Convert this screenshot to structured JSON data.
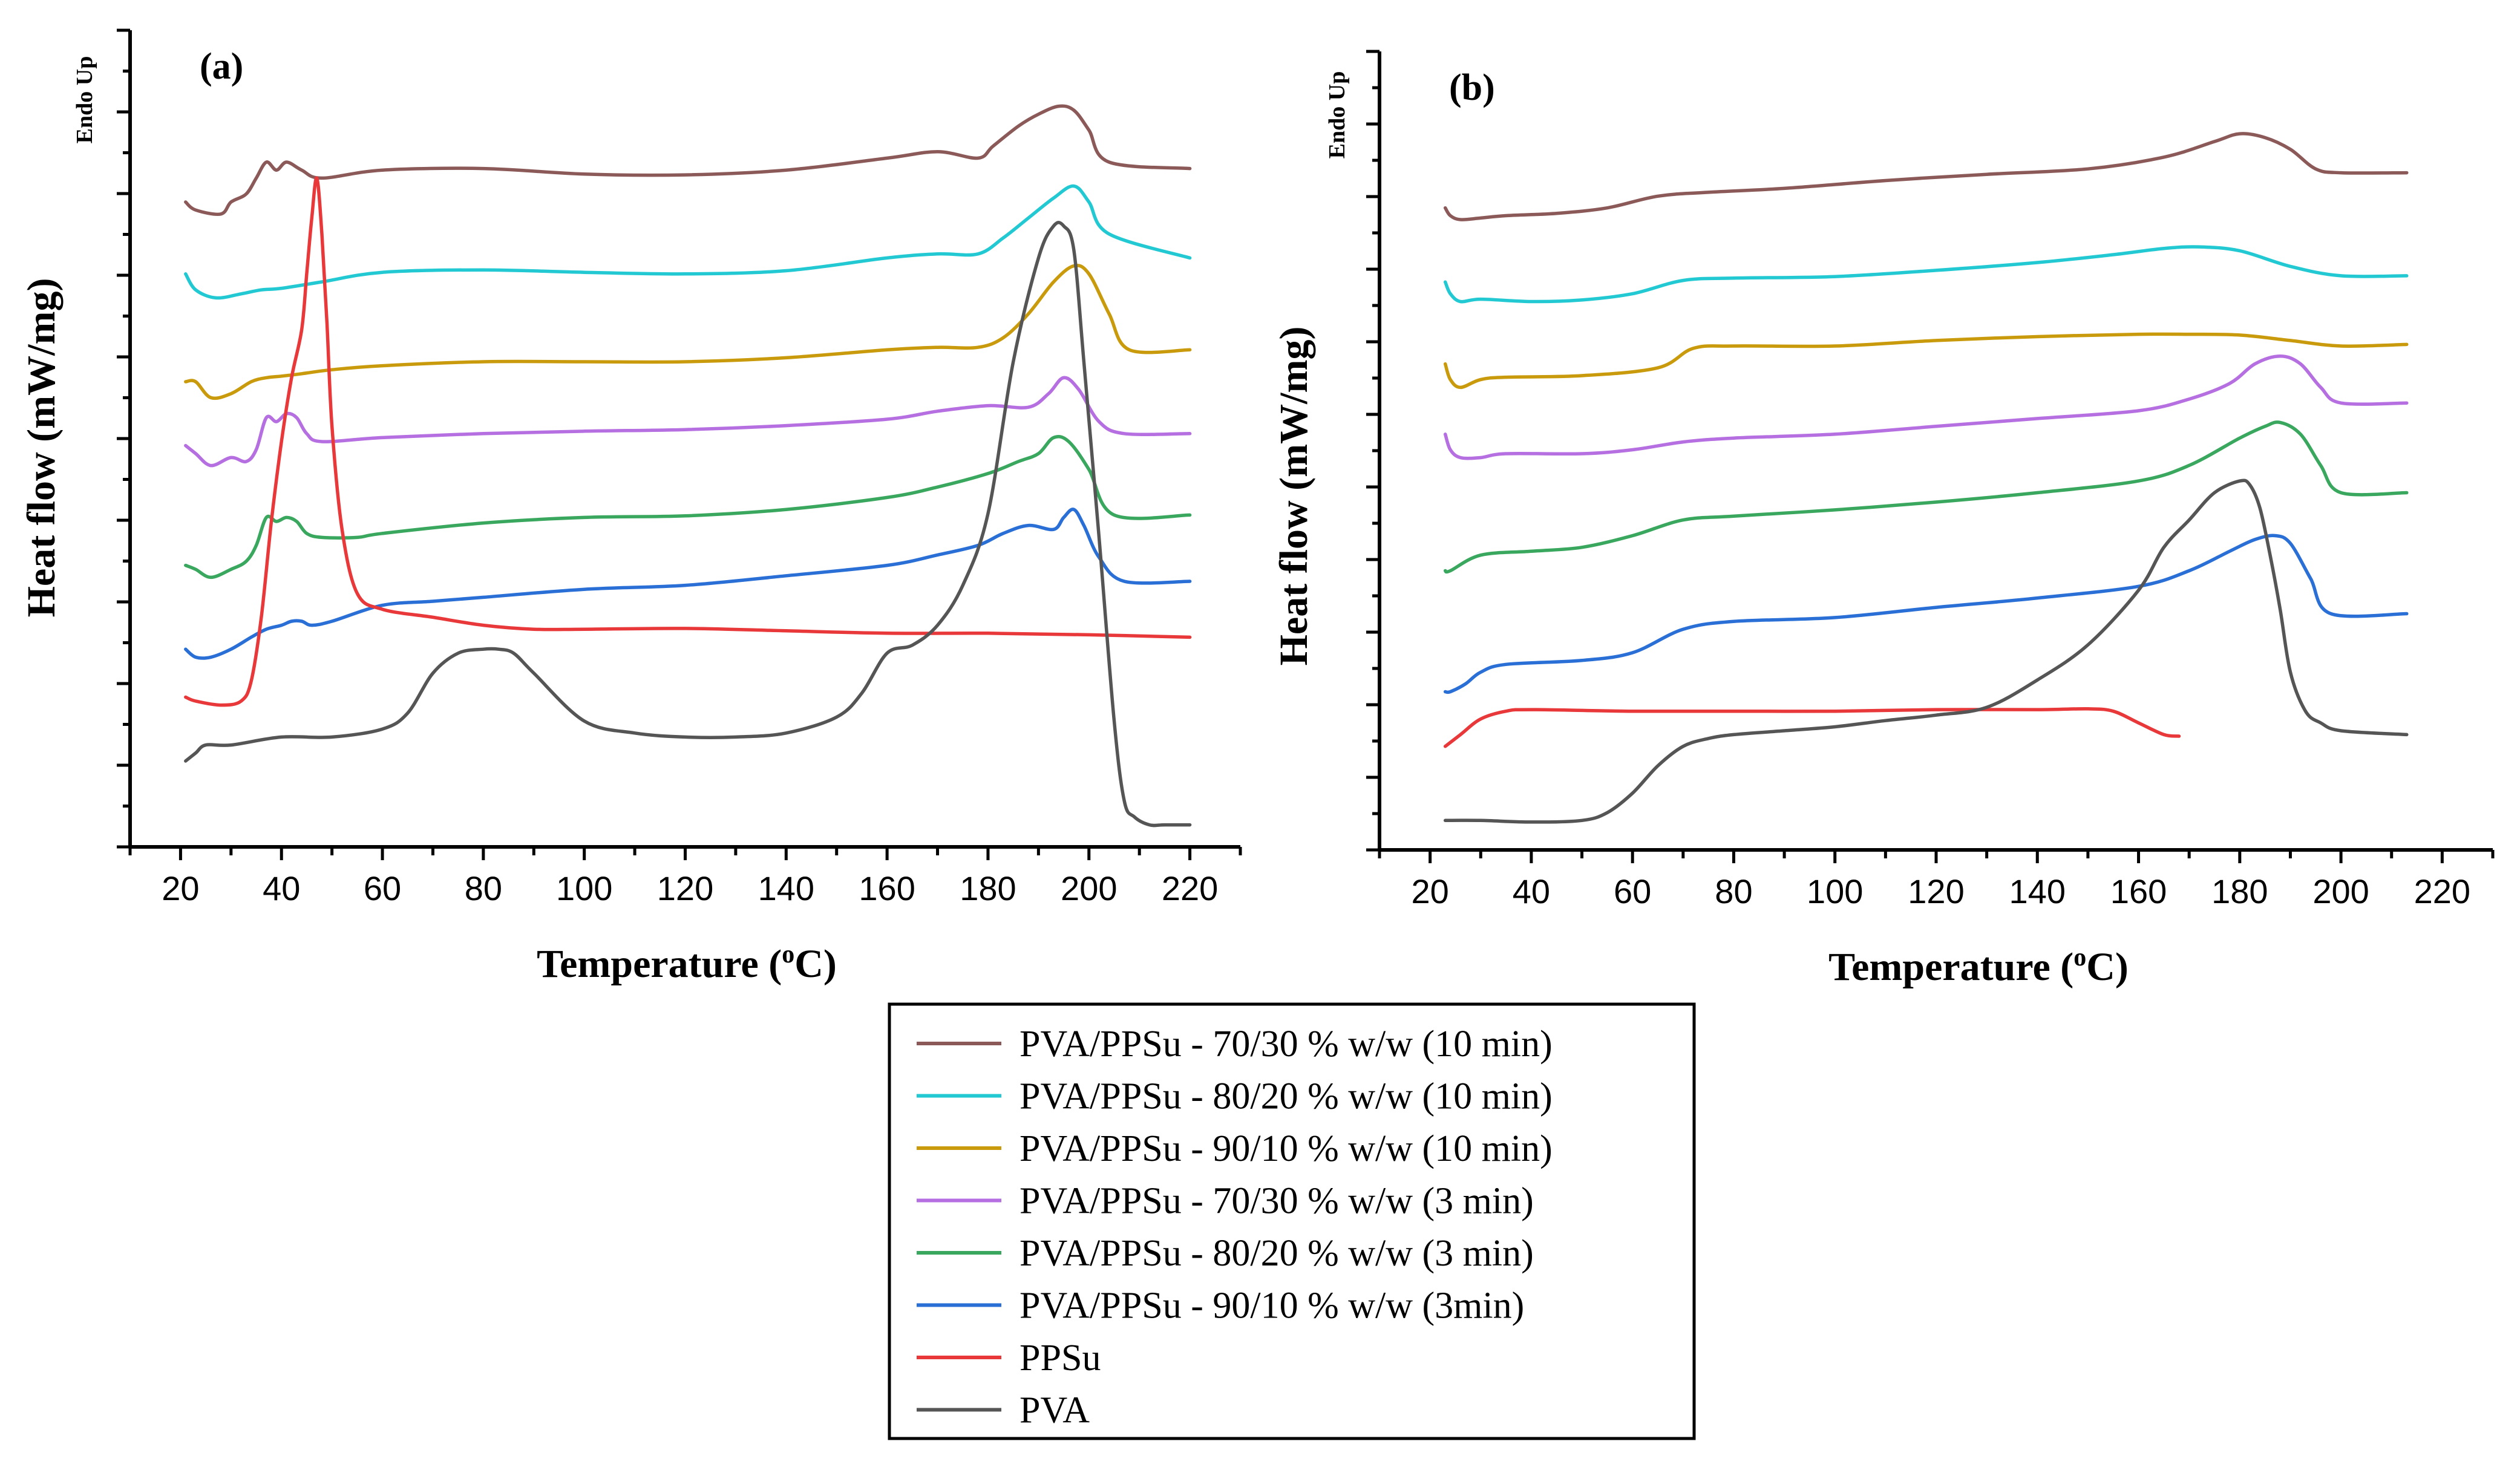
{
  "colors": {
    "PVA/PPSu - 70/30 % w/w (10 min)": "#8B5A58",
    "PVA/PPSu - 80/20 % w/w (10 min)": "#22C9D2",
    "PVA/PPSu - 90/10 % w/w (10 min)": "#C89A0C",
    "PVA/PPSu - 70/30 % w/w (3 min)": "#B56FE0",
    "PVA/PPSu - 80/20 % w/w (3 min)": "#3AA75E",
    "PVA/PPSu - 90/10 % w/w (3min)": "#2A6FD6",
    "PPSu": "#E8383A",
    "PVA": "#555555"
  },
  "legend": {
    "placement": "bottom-center",
    "entries": [
      "PVA/PPSu - 70/30 % w/w (10 min)",
      "PVA/PPSu - 80/20 % w/w (10 min)",
      "PVA/PPSu - 90/10 % w/w (10 min)",
      "PVA/PPSu - 70/30 % w/w (3 min)",
      "PVA/PPSu - 80/20 % w/w (3 min)",
      "PVA/PPSu - 90/10 % w/w (3min)",
      "PPSu",
      "PVA"
    ]
  },
  "chart_data": [
    {
      "type": "line",
      "panel_label": "(a)",
      "corner_label": "Endo Up",
      "xlabel": "Temperature (oC)",
      "ylabel": "Heat flow (mW/mg)",
      "xlim": [
        10,
        230
      ],
      "ylim": [
        0,
        100
      ],
      "xticks": [
        20,
        40,
        60,
        80,
        100,
        120,
        140,
        160,
        180,
        200,
        220
      ],
      "y_tick_labels_shown": false,
      "grid": false,
      "series": [
        {
          "name": "PVA/PPSu - 70/30 % w/w (10 min)",
          "x": [
            21,
            23,
            28,
            30,
            33,
            35,
            37,
            39,
            41,
            44,
            48,
            60,
            80,
            100,
            120,
            140,
            160,
            170,
            178,
            181,
            186,
            190,
            194,
            197,
            200,
            204,
            220
          ],
          "y": [
            80,
            79,
            78.5,
            80,
            81,
            83,
            85,
            84,
            85,
            84,
            83,
            84,
            84.2,
            83.5,
            83.4,
            84,
            85.5,
            86.3,
            85.5,
            87,
            89.5,
            91,
            92,
            91.5,
            89,
            85,
            84.2
          ]
        },
        {
          "name": "PVA/PPSu - 80/20 % w/w (10 min)",
          "x": [
            21,
            23,
            27,
            32,
            36,
            40,
            48,
            60,
            80,
            100,
            120,
            140,
            160,
            170,
            178,
            183,
            188,
            193,
            197,
            200,
            204,
            220
          ],
          "y": [
            71,
            69,
            68,
            68.5,
            69,
            69.2,
            70,
            71.2,
            71.5,
            71.2,
            71,
            71.4,
            73,
            73.5,
            73.5,
            75.5,
            78,
            80.5,
            82,
            80,
            76,
            73
          ]
        },
        {
          "name": "PVA/PPSu - 90/10 % w/w (10 min)",
          "x": [
            21,
            23,
            26,
            30,
            34,
            37,
            40,
            44,
            50,
            60,
            80,
            100,
            120,
            140,
            160,
            170,
            178,
            183,
            188,
            193,
            197,
            200,
            204,
            208,
            220
          ],
          "y": [
            57.5,
            57.5,
            55.5,
            56,
            57.5,
            58,
            58.2,
            58.5,
            59,
            59.5,
            60,
            60,
            60,
            60.5,
            61.5,
            61.8,
            61.8,
            63,
            66,
            70,
            72,
            71,
            66,
            61.5,
            61.5
          ]
        },
        {
          "name": "PVA/PPSu - 70/30 % w/w (3 min)",
          "x": [
            21,
            23,
            26,
            30,
            33,
            35,
            37,
            39,
            41,
            43,
            45,
            48,
            60,
            80,
            100,
            120,
            140,
            160,
            170,
            180,
            188,
            192,
            195,
            198,
            202,
            207,
            220
          ],
          "y": [
            49.5,
            48.5,
            47,
            48,
            47.5,
            49,
            53,
            52.5,
            53.5,
            53,
            51,
            50,
            50.5,
            51,
            51.3,
            51.5,
            52,
            52.8,
            53.8,
            54.5,
            54.3,
            56,
            58,
            56.5,
            52.5,
            51,
            51
          ]
        },
        {
          "name": "PVA/PPSu - 80/20 % w/w (3 min)",
          "x": [
            21,
            23,
            26,
            30,
            33,
            35,
            37,
            39,
            41,
            43,
            45,
            48,
            55,
            60,
            80,
            100,
            120,
            140,
            160,
            170,
            180,
            186,
            190,
            193,
            196,
            200,
            205,
            220
          ],
          "y": [
            34.5,
            34,
            33,
            34,
            35,
            37,
            40.5,
            40,
            40.5,
            40,
            38.5,
            38,
            38,
            38.5,
            39.8,
            40.5,
            40.7,
            41.5,
            43,
            44.3,
            46,
            47.5,
            48.5,
            50.5,
            50,
            46.5,
            40.8,
            40.8
          ]
        },
        {
          "name": "PVA/PPSu - 90/10 % w/w (3min)",
          "x": [
            21,
            23,
            26,
            30,
            34,
            37,
            40,
            42,
            44,
            46,
            50,
            60,
            70,
            80,
            100,
            120,
            140,
            160,
            170,
            178,
            183,
            188,
            193,
            195,
            197,
            199,
            202,
            207,
            220
          ],
          "y": [
            24,
            23,
            23,
            24,
            25.5,
            26.5,
            27,
            27.5,
            27.5,
            27,
            27.5,
            29.5,
            30,
            30.5,
            31.5,
            32,
            33.2,
            34.5,
            35.8,
            37,
            38.5,
            39.5,
            39,
            40.5,
            41.5,
            39.5,
            35.5,
            32.5,
            32.5
          ]
        },
        {
          "name": "PPSu",
          "x": [
            21,
            23,
            28,
            32,
            34,
            36,
            38,
            40,
            42,
            44,
            45,
            46,
            47,
            48,
            49,
            50,
            52,
            55,
            60,
            70,
            80,
            90,
            100,
            120,
            140,
            160,
            180,
            200,
            220
          ],
          "y": [
            18,
            17.5,
            17,
            17.5,
            20,
            28,
            40,
            50,
            58,
            64,
            71,
            78,
            83,
            76,
            65,
            52,
            39,
            31,
            29,
            28,
            27,
            26.5,
            26.5,
            26.6,
            26.3,
            26,
            26,
            25.8,
            25.5
          ]
        },
        {
          "name": "PVA",
          "x": [
            21,
            23,
            25,
            30,
            40,
            50,
            60,
            65,
            70,
            75,
            80,
            83,
            86,
            90,
            100,
            110,
            120,
            130,
            140,
            150,
            155,
            160,
            165,
            170,
            175,
            180,
            185,
            190,
            193,
            195,
            197,
            199,
            202,
            205,
            207,
            209,
            212,
            215,
            220
          ],
          "y": [
            10,
            11,
            12,
            12,
            13,
            13,
            14,
            16,
            21,
            23.5,
            24,
            24,
            23.5,
            21,
            15,
            13.5,
            13,
            13,
            13.5,
            15.5,
            18.5,
            23.5,
            24.5,
            27,
            32,
            41,
            60,
            73,
            77,
            77,
            74,
            60,
            38,
            15,
            5,
            3,
            2,
            2,
            2
          ]
        }
      ]
    },
    {
      "type": "line",
      "panel_label": "(b)",
      "corner_label": "Endo Up",
      "xlabel": "Temperature (oC)",
      "ylabel": "Heat flow (mW/mg)",
      "xlim": [
        10,
        230
      ],
      "ylim": [
        0,
        100
      ],
      "xticks": [
        20,
        40,
        60,
        80,
        100,
        120,
        140,
        160,
        180,
        200,
        220
      ],
      "y_tick_labels_shown": false,
      "grid": false,
      "series": [
        {
          "name": "PVA/PPSu - 70/30 % w/w (10 min)",
          "x": [
            23,
            24,
            26,
            30,
            35,
            45,
            55,
            65,
            75,
            90,
            110,
            130,
            150,
            165,
            175,
            180,
            185,
            190,
            195,
            200,
            213
          ],
          "y": [
            81.5,
            80.5,
            80,
            80.2,
            80.5,
            80.8,
            81.5,
            83,
            83.5,
            84,
            85,
            85.8,
            86.5,
            88,
            90,
            91,
            90.5,
            89,
            86.5,
            86,
            86
          ]
        },
        {
          "name": "PVA/PPSu - 80/20 % w/w (10 min)",
          "x": [
            23,
            24,
            26,
            30,
            40,
            50,
            60,
            70,
            80,
            100,
            120,
            140,
            155,
            165,
            172,
            180,
            190,
            200,
            213
          ],
          "y": [
            72,
            70.5,
            69.5,
            69.8,
            69.5,
            69.7,
            70.5,
            72.2,
            72.5,
            72.7,
            73.5,
            74.5,
            75.5,
            76.3,
            76.5,
            76,
            74,
            72.8,
            72.8
          ]
        },
        {
          "name": "PVA/PPSu - 90/10 % w/w (10 min)",
          "x": [
            23,
            24,
            26,
            30,
            35,
            50,
            65,
            72,
            80,
            100,
            120,
            140,
            160,
            170,
            180,
            190,
            200,
            213
          ],
          "y": [
            61.5,
            59.5,
            58.5,
            59.5,
            59.8,
            60,
            61,
            63.5,
            63.8,
            63.8,
            64.5,
            65,
            65.3,
            65.3,
            65.2,
            64.5,
            63.8,
            64
          ]
        },
        {
          "name": "PVA/PPSu - 70/30 % w/w (3 min)",
          "x": [
            23,
            24,
            26,
            30,
            35,
            50,
            60,
            70,
            80,
            100,
            120,
            140,
            160,
            170,
            178,
            183,
            188,
            192,
            196,
            200,
            213
          ],
          "y": [
            52.5,
            50.5,
            49.5,
            49.5,
            50,
            50,
            50.5,
            51.5,
            52,
            52.5,
            53.5,
            54.5,
            55.5,
            57,
            59,
            61.5,
            62.5,
            61.5,
            58.5,
            56.5,
            56.5
          ]
        },
        {
          "name": "PVA/PPSu - 80/20 % w/w (3 min)",
          "x": [
            23,
            24,
            30,
            40,
            50,
            60,
            70,
            80,
            100,
            120,
            140,
            160,
            170,
            180,
            185,
            188,
            192,
            196,
            200,
            213
          ],
          "y": [
            35,
            35,
            37,
            37.5,
            38,
            39.5,
            41.5,
            42,
            42.8,
            43.8,
            45,
            46.5,
            48.5,
            52,
            53.5,
            54,
            52.5,
            48.5,
            45,
            45
          ]
        },
        {
          "name": "PVA/PPSu - 90/10 % w/w (3min)",
          "x": [
            23,
            24,
            27,
            30,
            35,
            50,
            60,
            70,
            80,
            100,
            120,
            140,
            160,
            170,
            178,
            183,
            187,
            190,
            194,
            198,
            213
          ],
          "y": [
            19.5,
            19.5,
            20.5,
            22,
            23,
            23.5,
            24.5,
            27.5,
            28.5,
            29,
            30.3,
            31.5,
            33,
            35,
            37.5,
            39,
            39.5,
            38.5,
            34,
            29.5,
            29.5
          ]
        },
        {
          "name": "PPSu",
          "x": [
            23,
            26,
            30,
            35,
            40,
            60,
            80,
            100,
            120,
            140,
            150,
            155,
            160,
            165,
            168
          ],
          "y": [
            12.5,
            14,
            16,
            17,
            17.2,
            17,
            17,
            17,
            17.2,
            17.2,
            17.3,
            17,
            15.5,
            14,
            13.8
          ]
        },
        {
          "name": "PVA",
          "x": [
            23,
            30,
            40,
            50,
            55,
            60,
            65,
            70,
            75,
            80,
            90,
            100,
            110,
            120,
            130,
            140,
            150,
            160,
            165,
            170,
            175,
            180,
            182,
            184,
            186,
            188,
            190,
            193,
            196,
            200,
            213
          ],
          "y": [
            3,
            3,
            2.8,
            3,
            4,
            6.5,
            10,
            12.5,
            13.5,
            14,
            14.5,
            15,
            15.8,
            16.5,
            17.5,
            21,
            25.5,
            32.5,
            38,
            41.5,
            45,
            46.5,
            46,
            43,
            37,
            30,
            22,
            17,
            15.5,
            14.5,
            14
          ]
        }
      ]
    }
  ]
}
